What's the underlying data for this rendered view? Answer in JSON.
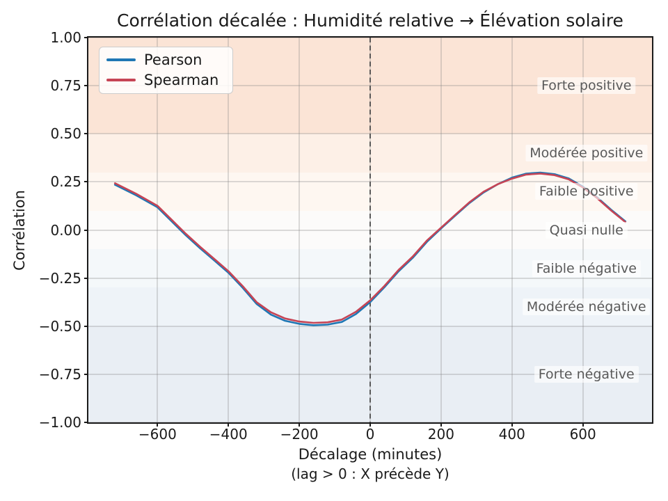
{
  "chart_data": {
    "type": "line",
    "title": "Corrélation décalée : Humidité relative → Élévation solaire",
    "ylabel": "Corrélation",
    "xlabel_line1": "Décalage (minutes)",
    "xlabel_line2": "(lag > 0 : X précède Y)",
    "xlim": [
      -795,
      795
    ],
    "ylim": [
      -1,
      1
    ],
    "grid": true,
    "legend_position": "upper left",
    "x_ticks": [
      -600,
      -400,
      -200,
      0,
      200,
      400,
      600
    ],
    "x_tick_labels": [
      "−600",
      "−400",
      "−200",
      "0",
      "200",
      "400",
      "600"
    ],
    "y_ticks": [
      1.0,
      0.75,
      0.5,
      0.25,
      0.0,
      -0.25,
      -0.5,
      -0.75,
      -1.0
    ],
    "y_tick_labels": [
      "1.00",
      "0.75",
      "0.50",
      "0.25",
      "0.00",
      "−0.25",
      "−0.50",
      "−0.75",
      "−1.00"
    ],
    "grid_color": "#c8c8c8",
    "zero_lag_line": {
      "x": 0,
      "style": "dashed",
      "color": "#4d4d4d"
    },
    "x": [
      -720,
      -660,
      -600,
      -560,
      -520,
      -480,
      -440,
      -400,
      -360,
      -320,
      -280,
      -240,
      -200,
      -160,
      -120,
      -80,
      -40,
      0,
      40,
      80,
      120,
      160,
      200,
      240,
      280,
      320,
      360,
      400,
      440,
      480,
      520,
      560,
      600,
      640,
      680,
      720
    ],
    "series": [
      {
        "name": "Pearson",
        "color": "#1f77b4",
        "values": [
          0.235,
          0.18,
          0.118,
          0.045,
          -0.028,
          -0.095,
          -0.158,
          -0.222,
          -0.3,
          -0.385,
          -0.44,
          -0.472,
          -0.488,
          -0.495,
          -0.492,
          -0.478,
          -0.437,
          -0.375,
          -0.298,
          -0.215,
          -0.145,
          -0.062,
          0.008,
          0.075,
          0.14,
          0.195,
          0.238,
          0.272,
          0.293,
          0.298,
          0.29,
          0.268,
          0.225,
          0.17,
          0.105,
          0.045
        ]
      },
      {
        "name": "Spearman",
        "color": "#c64455",
        "values": [
          0.243,
          0.188,
          0.126,
          0.053,
          -0.02,
          -0.087,
          -0.15,
          -0.214,
          -0.291,
          -0.376,
          -0.428,
          -0.46,
          -0.476,
          -0.483,
          -0.48,
          -0.466,
          -0.425,
          -0.366,
          -0.291,
          -0.208,
          -0.138,
          -0.055,
          0.012,
          0.079,
          0.144,
          0.199,
          0.238,
          0.267,
          0.288,
          0.293,
          0.285,
          0.263,
          0.221,
          0.166,
          0.101,
          0.041
        ]
      }
    ],
    "band_label_x": 610,
    "bands": [
      {
        "label": "Forte positive",
        "range": [
          0.5,
          1.0
        ],
        "color": "#fbe4d6",
        "label_y": 0.75
      },
      {
        "label": "Modérée positive",
        "range": [
          0.3,
          0.5
        ],
        "color": "#fdf0e7",
        "label_y": 0.4
      },
      {
        "label": "Faible positive",
        "range": [
          0.1,
          0.3
        ],
        "color": "#fef7f1",
        "label_y": 0.2
      },
      {
        "label": "Quasi nulle",
        "range": [
          -0.1,
          0.1
        ],
        "color": "#fcfbfa",
        "label_y": 0.0
      },
      {
        "label": "Faible négative",
        "range": [
          -0.3,
          -0.1
        ],
        "color": "#f4f8fa",
        "label_y": -0.2
      },
      {
        "label": "Modérée négative",
        "range": [
          -0.5,
          -0.3
        ],
        "color": "#eef3f8",
        "label_y": -0.4
      },
      {
        "label": "Forte négative",
        "range": [
          -1.0,
          -0.5
        ],
        "color": "#e9eef4",
        "label_y": -0.75
      }
    ]
  }
}
